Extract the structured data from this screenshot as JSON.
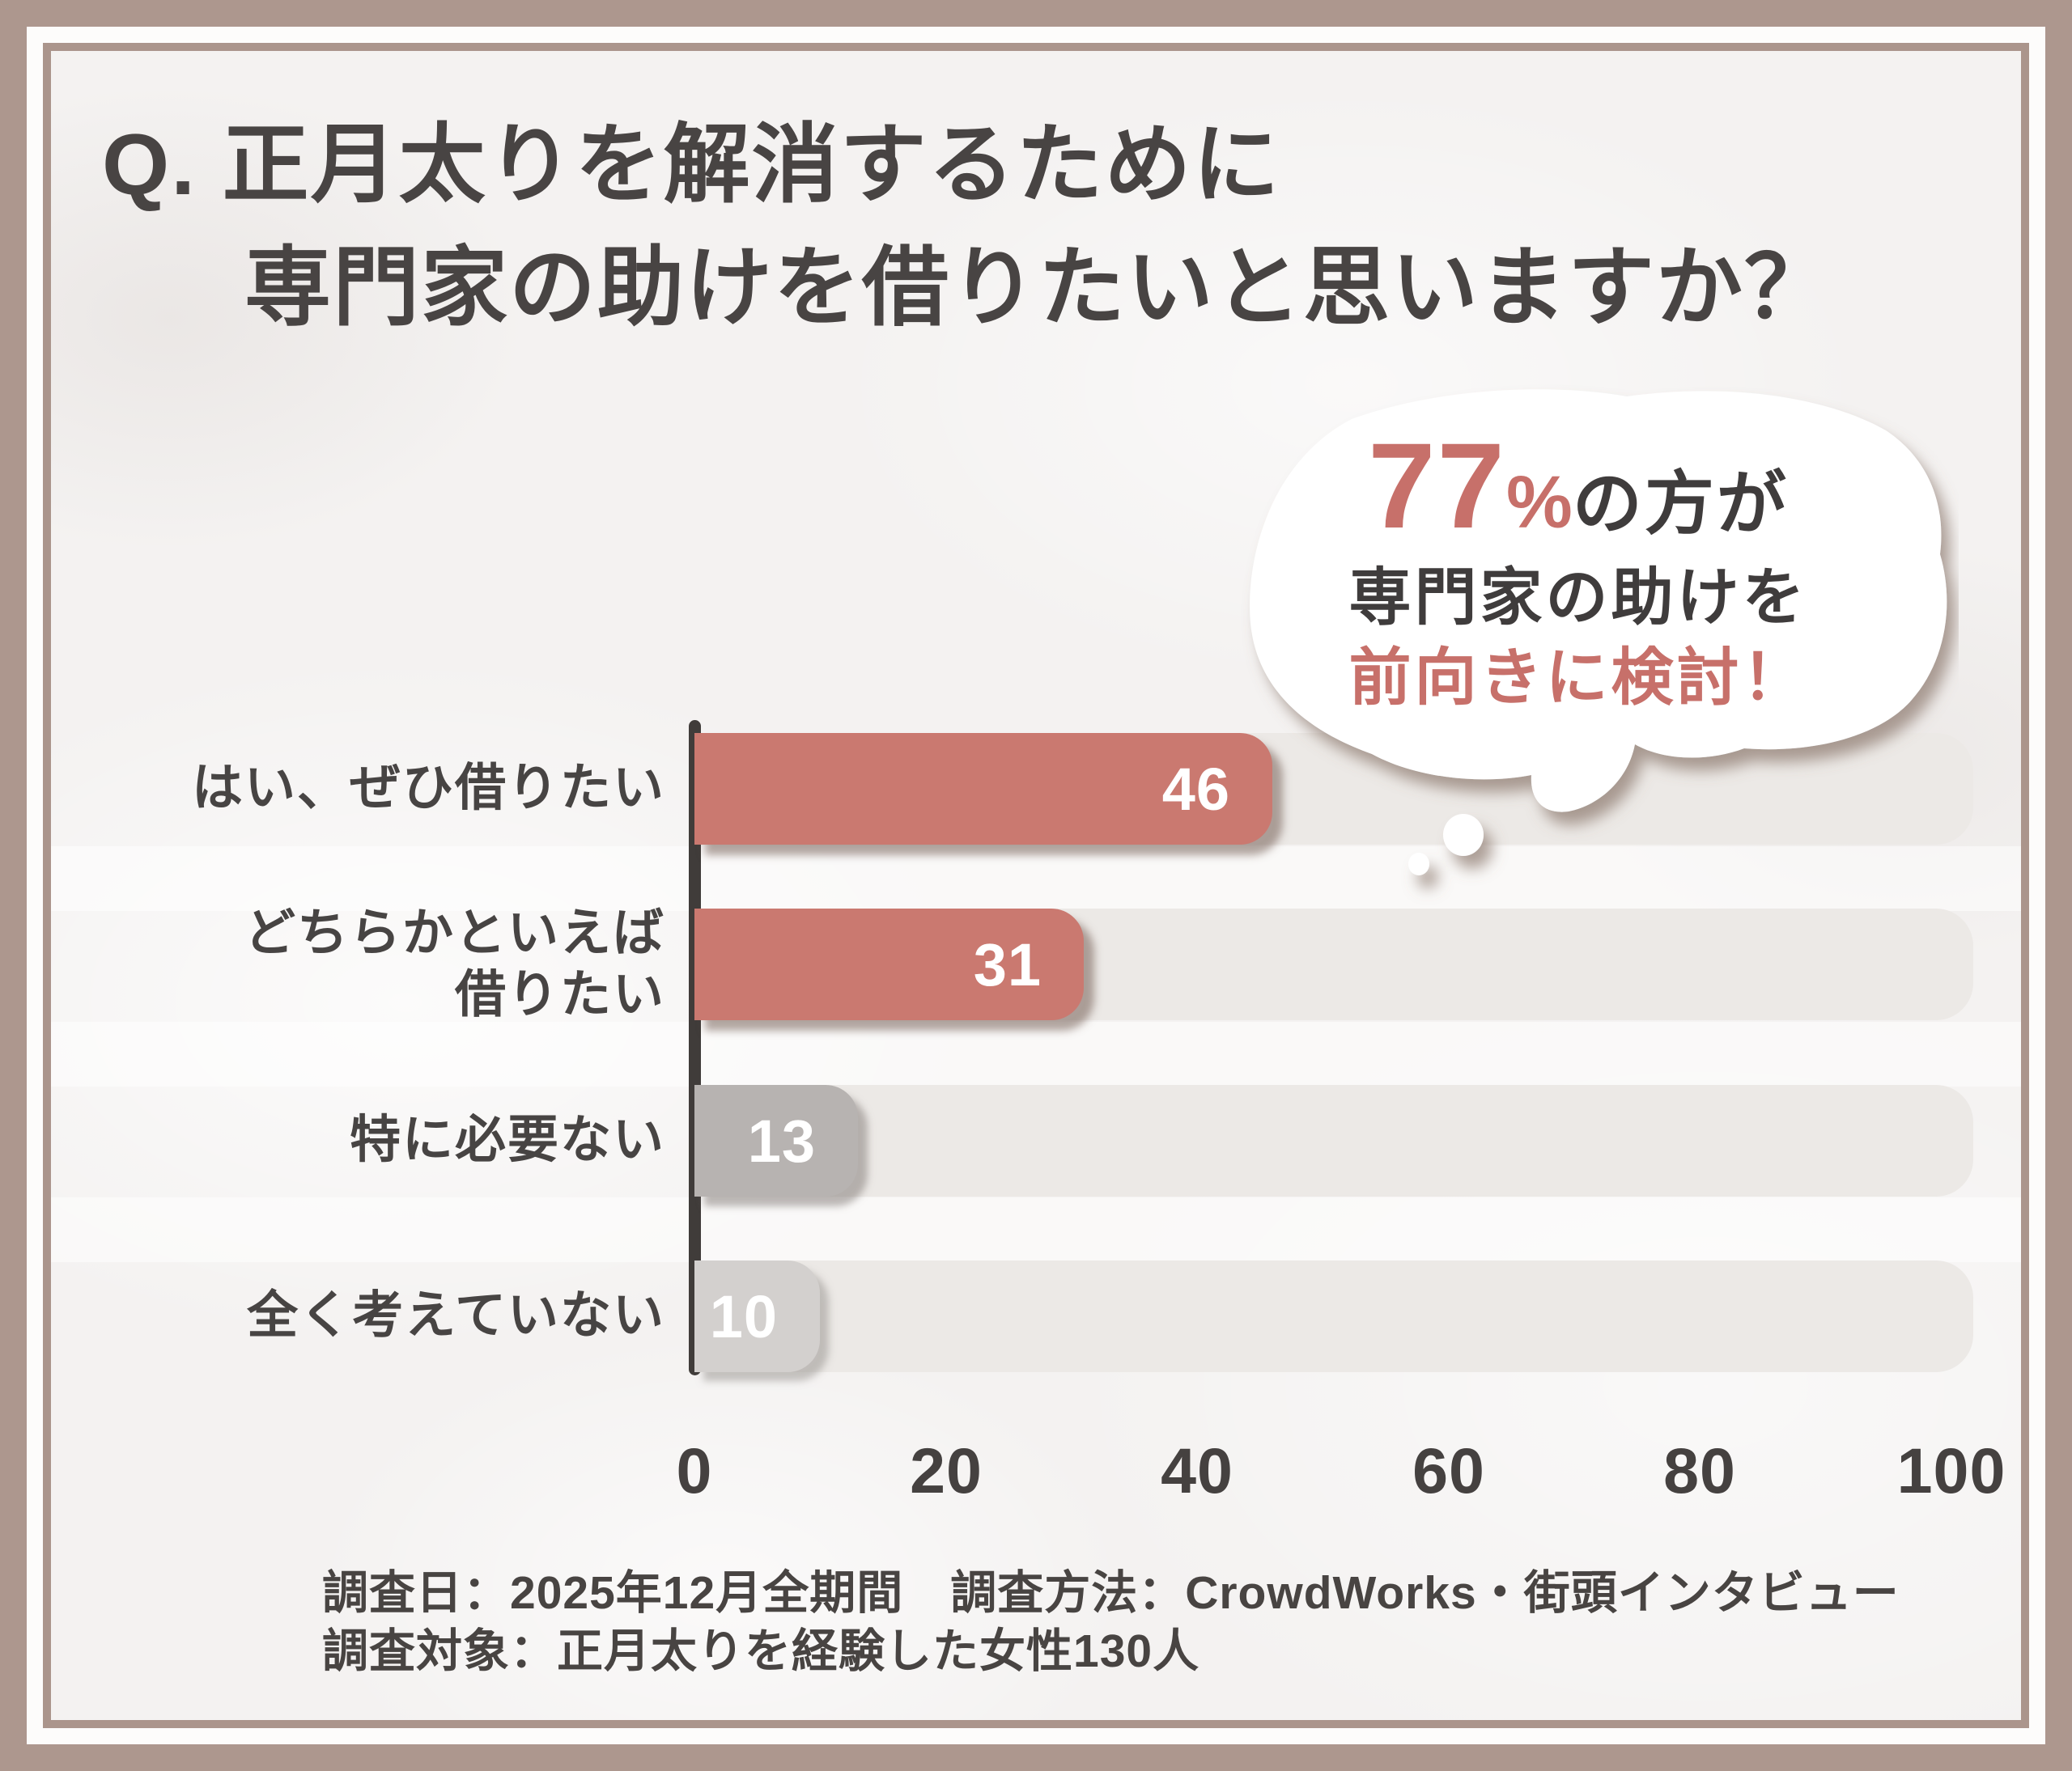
{
  "title": {
    "line1": "Q. 正月太りを解消するために",
    "line2": "専門家の助けを借りたいと思いますか？"
  },
  "bubble": {
    "percent_value": "77",
    "percent_sign": "%",
    "suffix": "の方が",
    "line2": "専門家の助けを",
    "line3": "前向きに検討！"
  },
  "chart_data": {
    "type": "bar",
    "orientation": "horizontal",
    "categories": [
      "はい、ぜひ借りたい",
      "どちらかといえば\n借りたい",
      "特に必要ない",
      "全く考えていない"
    ],
    "values": [
      46,
      31,
      13,
      10
    ],
    "bar_colors": [
      "#ca7970",
      "#ca7970",
      "#b7b3b1",
      "#d3d0ce"
    ],
    "xlim": [
      0,
      100
    ],
    "x_ticks": [
      "0",
      "20",
      "40",
      "60",
      "80",
      "100"
    ],
    "grid": false,
    "value_label_color": "#ffffff"
  },
  "footer": {
    "line1": "調査日：2025年12月全期間　調査方法：CrowdWorks・街頭インタビュー",
    "line2": "調査対象：正月太りを経験した女性130人"
  },
  "colors": {
    "frame": "#ad978e",
    "content_background": "#f4f2f1",
    "track": "#ece9e6",
    "accent_red": "#ca7970",
    "accent_red_text": "#c7706a",
    "bar_gray": "#b7b3b1",
    "bar_light_gray": "#d3d0ce",
    "text_dark": "#474443"
  }
}
